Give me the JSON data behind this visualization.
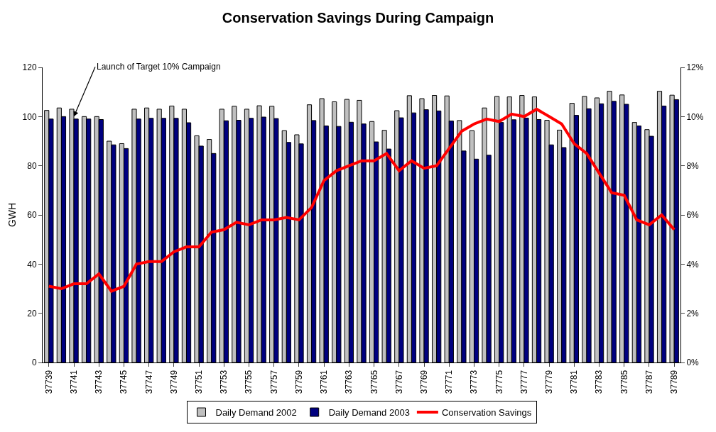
{
  "chart_data": {
    "type": "bar",
    "title": "Conservation Savings During Campaign",
    "ylabel": "GWH",
    "categories": [
      "37739",
      null,
      "37741",
      null,
      "37743",
      null,
      "37745",
      null,
      "37747",
      null,
      "37749",
      null,
      "37751",
      null,
      "37753",
      null,
      "37755",
      null,
      "37757",
      null,
      "37759",
      null,
      "37761",
      null,
      "37763",
      null,
      "37765",
      null,
      "37767",
      null,
      "37769",
      null,
      "37771",
      null,
      "37773",
      null,
      "37775",
      null,
      "37777",
      null,
      "37779",
      null,
      "37781",
      null,
      "37783",
      null,
      "37785",
      null,
      "37787",
      null,
      "37789"
    ],
    "series": [
      {
        "name": "Daily Demand 2002",
        "color": "#c0c0c0",
        "values": [
          102.5,
          103.5,
          103,
          100,
          100,
          90,
          89,
          103,
          103.5,
          103,
          104.3,
          103,
          92.2,
          90.7,
          103,
          104.2,
          103,
          104.4,
          104.2,
          94.3,
          92.6,
          104.8,
          107.3,
          106,
          107,
          106.6,
          98,
          94.4,
          102.4,
          108.5,
          107.3,
          108.6,
          108.4,
          98.4,
          94.3,
          103.5,
          108.2,
          108,
          108.6,
          108,
          98.5,
          94.5,
          105.4,
          108.2,
          107.6,
          110.3,
          108.8,
          97.6,
          94.7,
          110.3,
          108.7
        ]
      },
      {
        "name": "Daily Demand 2003",
        "color": "#000080",
        "values": [
          99,
          100,
          99,
          99,
          98.8,
          88.5,
          87,
          99,
          99.3,
          99.3,
          99.3,
          97.5,
          88,
          85,
          98.3,
          98.5,
          99.3,
          99.8,
          99.2,
          89.5,
          88.9,
          98.4,
          96.2,
          96,
          97.7,
          97,
          89.7,
          86.8,
          99.5,
          101.5,
          102.8,
          102.3,
          98.2,
          86,
          82.7,
          84.3,
          97.6,
          98.7,
          99.4,
          98.8,
          88.5,
          87.4,
          100.5,
          103.2,
          105.2,
          106.2,
          105,
          96.2,
          92,
          104.3,
          106.9
        ]
      },
      {
        "name": "Conservation Savings",
        "type": "line",
        "axis": "y2",
        "color": "#ff0000",
        "values": [
          3.1,
          3.0,
          3.2,
          3.2,
          3.6,
          2.9,
          3.1,
          4.0,
          4.1,
          4.1,
          4.5,
          4.7,
          4.7,
          5.3,
          5.4,
          5.7,
          5.6,
          5.8,
          5.8,
          5.9,
          5.8,
          6.3,
          7.4,
          7.8,
          8.0,
          8.2,
          8.2,
          8.5,
          7.8,
          8.2,
          7.9,
          8.0,
          8.7,
          9.4,
          9.7,
          9.9,
          9.8,
          10.1,
          10.0,
          10.3,
          10.0,
          9.7,
          8.9,
          8.5,
          7.7,
          6.9,
          6.8,
          5.8,
          5.6,
          6.0,
          5.4
        ]
      }
    ],
    "ylim": [
      0,
      120
    ],
    "yticks": [
      0,
      20,
      40,
      60,
      80,
      100,
      120
    ],
    "y2lim": [
      0,
      12
    ],
    "y2ticks": [
      {
        "value": 0,
        "label": "0%"
      },
      {
        "value": 2,
        "label": "2%"
      },
      {
        "value": 4,
        "label": "4%"
      },
      {
        "value": 6,
        "label": "6%"
      },
      {
        "value": 8,
        "label": "8%"
      },
      {
        "value": 10,
        "label": "10%"
      },
      {
        "value": 12,
        "label": "12%"
      }
    ],
    "annotations": [
      {
        "text": "Launch of Target 10% Campaign",
        "x": "37741",
        "y": 100
      }
    ],
    "grid": false,
    "legend": "bottom",
    "marker": "none",
    "line_style": "solid"
  }
}
